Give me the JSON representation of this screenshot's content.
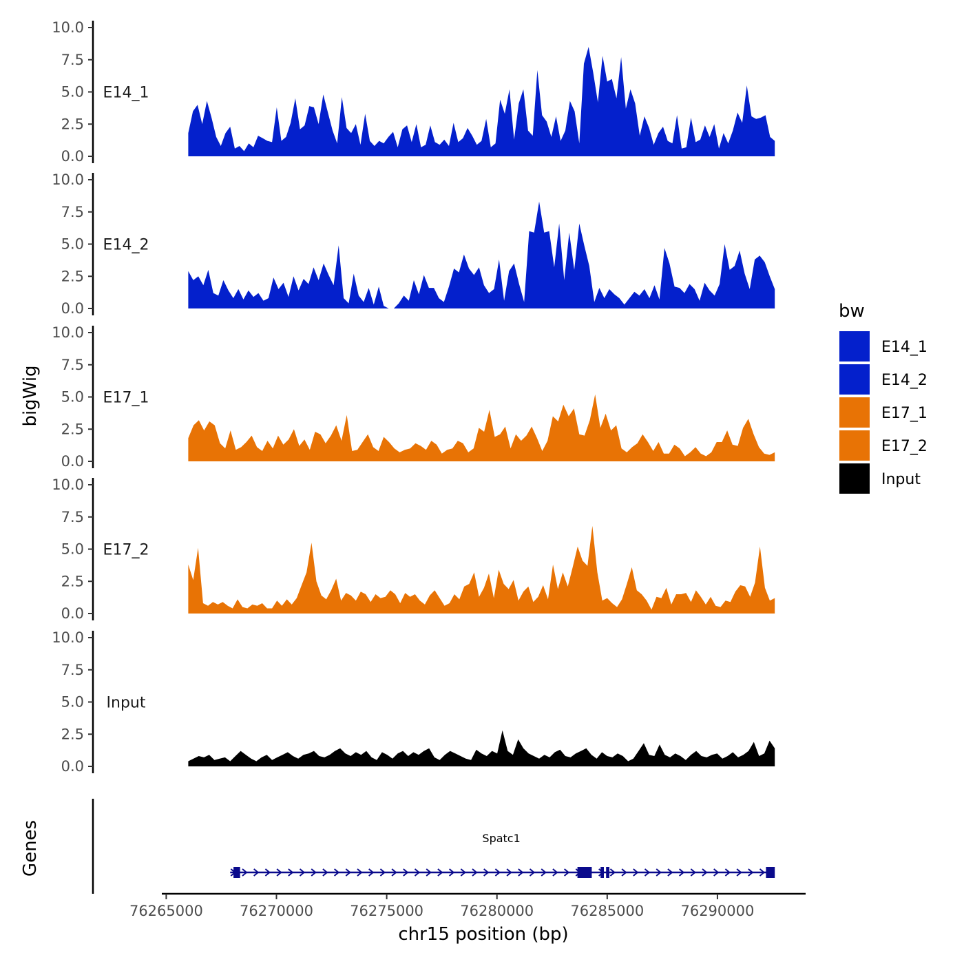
{
  "chart_data": {
    "type": "area",
    "title": "",
    "ylabel": "bigWig",
    "xlabel": "chr15 position (bp)",
    "genes_label": "Genes",
    "ylim": [
      0,
      10
    ],
    "y_ticks": [
      "0.0",
      "2.5",
      "5.0",
      "7.5",
      "10.0"
    ],
    "xlim": [
      76264800,
      76294000
    ],
    "x_ticks": [
      76265000,
      76270000,
      76275000,
      76280000,
      76285000,
      76290000
    ],
    "x_tick_labels": [
      "76265000",
      "76270000",
      "76275000",
      "76280000",
      "76285000",
      "76290000"
    ],
    "legend": {
      "title": "bw",
      "position": "right",
      "entries": [
        {
          "label": "E14_1",
          "color": "#0420CC"
        },
        {
          "label": "E14_2",
          "color": "#0420CC"
        },
        {
          "label": "E17_1",
          "color": "#E87305"
        },
        {
          "label": "E17_2",
          "color": "#E87305"
        },
        {
          "label": "Input",
          "color": "#000000"
        }
      ]
    },
    "x_range": [
      76266000,
      76292600
    ],
    "series": [
      {
        "name": "E14_1",
        "color": "#0420CC",
        "values": [
          1.8,
          3.5,
          4.0,
          2.5,
          4.3,
          3.0,
          1.5,
          0.8,
          1.8,
          2.3,
          0.6,
          0.8,
          0.4,
          1.0,
          0.7,
          1.6,
          1.4,
          1.2,
          1.1,
          3.8,
          1.2,
          1.5,
          2.6,
          4.5,
          2.1,
          2.4,
          3.9,
          3.8,
          2.5,
          4.8,
          3.4,
          2.0,
          1.0,
          4.6,
          2.2,
          1.8,
          2.5,
          0.9,
          3.3,
          1.2,
          0.8,
          1.2,
          1.0,
          1.5,
          1.9,
          0.7,
          2.1,
          2.4,
          1.1,
          2.5,
          0.7,
          0.9,
          2.4,
          1.1,
          0.9,
          1.3,
          0.8,
          2.6,
          1.1,
          1.4,
          2.2,
          1.6,
          0.9,
          1.2,
          2.9,
          0.7,
          1.0,
          4.4,
          3.3,
          5.2,
          1.3,
          4.1,
          5.2,
          2.0,
          1.6,
          6.7,
          3.2,
          2.7,
          1.5,
          3.1,
          1.2,
          2.0,
          4.3,
          3.5,
          1.0,
          7.2,
          8.5,
          6.5,
          4.2,
          7.8,
          5.8,
          6.0,
          4.5,
          7.7,
          3.7,
          5.2,
          4.1,
          1.6,
          3.1,
          2.2,
          0.9,
          1.8,
          2.3,
          1.2,
          1.0,
          3.2,
          0.6,
          0.7,
          3.0,
          1.1,
          1.3,
          2.4,
          1.5,
          2.5,
          0.6,
          1.8,
          1.0,
          2.0,
          3.4,
          2.6,
          5.5,
          3.1,
          2.9,
          3.0,
          3.2,
          1.5,
          1.2
        ]
      },
      {
        "name": "E14_2",
        "color": "#0420CC",
        "values": [
          2.9,
          2.2,
          2.5,
          1.8,
          3.0,
          1.2,
          1.0,
          2.2,
          1.4,
          0.8,
          1.5,
          0.7,
          1.4,
          0.9,
          1.2,
          0.6,
          0.8,
          2.4,
          1.5,
          2.0,
          0.9,
          2.5,
          1.4,
          2.3,
          1.9,
          3.2,
          2.2,
          3.5,
          2.6,
          1.8,
          4.9,
          0.8,
          0.4,
          2.7,
          1.0,
          0.5,
          1.6,
          0.3,
          1.7,
          0.2,
          0.0,
          0.0,
          0.4,
          1.0,
          0.6,
          2.2,
          1.1,
          2.6,
          1.6,
          1.6,
          0.8,
          0.5,
          1.7,
          3.1,
          2.8,
          4.2,
          3.1,
          2.6,
          3.2,
          1.8,
          1.2,
          1.5,
          3.8,
          0.6,
          2.9,
          3.5,
          1.9,
          0.5,
          6.0,
          5.9,
          8.3,
          5.9,
          6.0,
          3.2,
          6.6,
          2.2,
          5.9,
          3.0,
          6.6,
          4.9,
          3.3,
          0.5,
          1.6,
          0.8,
          1.5,
          1.1,
          0.8,
          0.3,
          0.8,
          1.3,
          1.0,
          1.5,
          0.8,
          1.8,
          0.7,
          4.7,
          3.5,
          1.7,
          1.6,
          1.2,
          1.9,
          1.5,
          0.6,
          2.0,
          1.4,
          1.0,
          1.9,
          5.0,
          3.0,
          3.3,
          4.5,
          2.7,
          1.5,
          3.8,
          4.1,
          3.6,
          2.5,
          1.5
        ]
      },
      {
        "name": "E17_1",
        "color": "#E87305",
        "values": [
          1.8,
          2.8,
          3.2,
          2.4,
          3.1,
          2.8,
          1.4,
          1.0,
          2.4,
          0.9,
          1.1,
          1.5,
          2.0,
          1.1,
          0.8,
          1.6,
          1.0,
          2.0,
          1.3,
          1.7,
          2.5,
          1.2,
          1.7,
          0.9,
          2.3,
          2.1,
          1.4,
          2.0,
          2.8,
          1.6,
          3.6,
          0.8,
          0.9,
          1.5,
          2.1,
          1.1,
          0.8,
          1.9,
          1.5,
          1.0,
          0.7,
          0.9,
          1.0,
          1.4,
          1.2,
          0.9,
          1.6,
          1.3,
          0.6,
          0.9,
          1.0,
          1.6,
          1.4,
          0.7,
          1.0,
          2.6,
          2.3,
          4.0,
          1.9,
          2.1,
          2.7,
          1.0,
          2.1,
          1.6,
          2.0,
          2.7,
          1.8,
          0.8,
          1.6,
          3.5,
          3.1,
          4.4,
          3.5,
          4.1,
          2.1,
          2.0,
          3.2,
          5.2,
          2.6,
          3.7,
          2.4,
          2.8,
          1.0,
          0.7,
          1.1,
          1.4,
          2.1,
          1.5,
          0.8,
          1.5,
          0.6,
          0.6,
          1.3,
          1.0,
          0.4,
          0.7,
          1.1,
          0.6,
          0.4,
          0.7,
          1.5,
          1.5,
          2.4,
          1.3,
          1.2,
          2.6,
          3.3,
          2.1,
          1.1,
          0.6,
          0.5,
          0.7
        ]
      },
      {
        "name": "E17_2",
        "color": "#E87305",
        "values": [
          3.8,
          2.6,
          5.1,
          0.8,
          0.6,
          0.9,
          0.7,
          0.9,
          0.6,
          0.4,
          1.1,
          0.5,
          0.4,
          0.7,
          0.6,
          0.8,
          0.4,
          0.4,
          1.0,
          0.6,
          1.1,
          0.7,
          1.2,
          2.2,
          3.2,
          5.5,
          2.5,
          1.4,
          1.1,
          1.8,
          2.7,
          1.0,
          1.6,
          1.4,
          1.0,
          1.7,
          1.5,
          0.9,
          1.5,
          1.2,
          1.3,
          1.8,
          1.5,
          0.8,
          1.6,
          1.3,
          1.5,
          1.0,
          0.7,
          1.4,
          1.8,
          1.2,
          0.6,
          0.8,
          1.5,
          1.1,
          2.1,
          2.3,
          3.2,
          1.3,
          2.0,
          3.1,
          1.2,
          3.4,
          2.3,
          1.9,
          2.6,
          1.0,
          1.7,
          2.1,
          0.9,
          1.3,
          2.2,
          1.1,
          3.8,
          1.9,
          3.2,
          2.1,
          3.6,
          5.2,
          4.1,
          3.7,
          6.8,
          3.2,
          1.0,
          1.2,
          0.8,
          0.5,
          1.1,
          2.3,
          3.6,
          1.8,
          1.5,
          1.0,
          0.3,
          1.3,
          1.2,
          2.0,
          0.7,
          1.5,
          1.5,
          1.6,
          0.9,
          1.8,
          1.3,
          0.7,
          1.3,
          0.6,
          0.5,
          1.0,
          0.9,
          1.7,
          2.2,
          2.1,
          1.3,
          2.4,
          5.2,
          2.0,
          1.0,
          1.2
        ]
      },
      {
        "name": "Input",
        "color": "#000000",
        "values": [
          0.4,
          0.6,
          0.8,
          0.7,
          0.9,
          0.5,
          0.6,
          0.7,
          0.4,
          0.8,
          1.2,
          0.9,
          0.6,
          0.4,
          0.7,
          0.9,
          0.5,
          0.7,
          0.9,
          1.1,
          0.8,
          0.6,
          0.9,
          1.0,
          1.2,
          0.8,
          0.7,
          0.9,
          1.2,
          1.4,
          1.0,
          0.8,
          1.1,
          0.9,
          1.2,
          0.7,
          0.5,
          1.1,
          0.9,
          0.6,
          1.0,
          1.2,
          0.8,
          1.1,
          0.9,
          1.2,
          1.4,
          0.7,
          0.5,
          0.9,
          1.2,
          1.0,
          0.8,
          0.6,
          0.5,
          1.3,
          1.0,
          0.8,
          1.2,
          1.0,
          2.8,
          1.2,
          0.9,
          2.1,
          1.4,
          1.0,
          0.8,
          0.6,
          0.9,
          0.7,
          1.1,
          1.3,
          0.8,
          0.7,
          1.0,
          1.2,
          1.4,
          0.9,
          0.6,
          1.1,
          0.8,
          0.7,
          1.0,
          0.8,
          0.4,
          0.6,
          1.2,
          1.8,
          0.9,
          0.8,
          1.7,
          0.9,
          0.7,
          1.0,
          0.8,
          0.5,
          0.9,
          1.2,
          0.8,
          0.7,
          0.9,
          1.0,
          0.6,
          0.8,
          1.1,
          0.7,
          0.9,
          1.2,
          1.9,
          0.8,
          1.0,
          2.0,
          1.4
        ]
      }
    ],
    "genes": [
      {
        "name": "Spatc1",
        "strand": "+",
        "start": 76267900,
        "end": 76292500,
        "exons": [
          [
            76268050,
            76268350
          ],
          [
            76283650,
            76284300
          ],
          [
            76284700,
            76284850
          ],
          [
            76284950,
            76285100
          ],
          [
            76292200,
            76292600
          ]
        ]
      }
    ]
  }
}
